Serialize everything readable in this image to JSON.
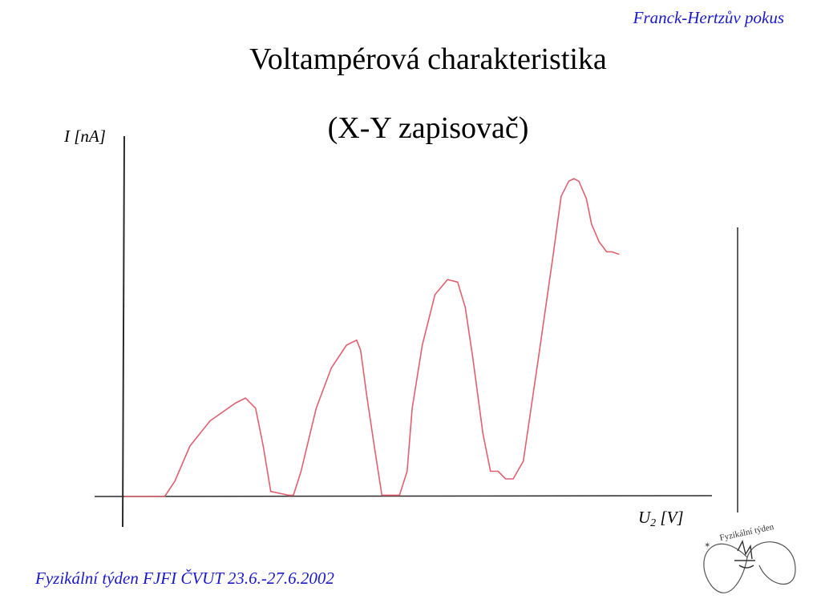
{
  "header": {
    "tag": "Franck-Hertzův pokus"
  },
  "slide": {
    "title": "Voltampérová charakteristika",
    "subtitle": "(X-Y zapisovač)"
  },
  "footer": {
    "text": "Fyzikální týden FJFI ČVUT 23.6.-27.6.2002"
  },
  "logo": {
    "text": "Fyzikální týden"
  },
  "colors": {
    "curve": "#e06070",
    "axis": "#2a2a2a",
    "accent": "#1a1acc"
  },
  "chart_data": {
    "type": "line",
    "title": "Voltampérová charakteristika",
    "ylabel": "I [nA]",
    "xlabel_main": "U",
    "xlabel_sub": "2",
    "xlabel_unit": " [V]",
    "grid": false,
    "series": [
      {
        "x": [
          0,
          8,
          10,
          13,
          17,
          22,
          24,
          26,
          27.5,
          29,
          32.5,
          33.5,
          35,
          38,
          41,
          44,
          46,
          46.8,
          48,
          49.5,
          51,
          54.5,
          56,
          57,
          59,
          61.5,
          64,
          66,
          67.5,
          69,
          71,
          72.5,
          74,
          75.5,
          77,
          79,
          82,
          85,
          86.5,
          88,
          89,
          90,
          91.5,
          92.5,
          94,
          95.5,
          96.5,
          98
        ],
        "y": [
          0,
          0,
          6,
          20,
          30,
          37,
          39,
          35,
          20,
          2,
          0.5,
          0.5,
          10,
          35,
          51,
          60,
          62,
          58,
          40,
          20,
          0.5,
          0.5,
          10,
          35,
          60,
          80,
          86,
          85,
          75,
          55,
          25,
          10,
          10,
          7,
          7,
          14,
          55,
          97,
          119,
          125,
          126,
          125,
          118,
          108,
          101,
          97,
          97,
          96
        ]
      }
    ],
    "xlim": [
      -5,
      100
    ],
    "ylim": [
      -5,
      135
    ]
  }
}
